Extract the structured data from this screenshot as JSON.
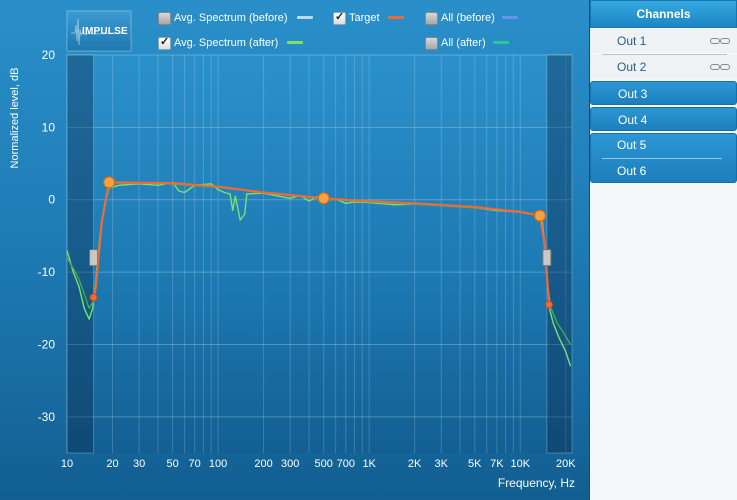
{
  "legend": {
    "items": [
      {
        "label": "Avg. Spectrum (before)",
        "checked": false,
        "color": "#b9dcec"
      },
      {
        "label": "Target",
        "checked": true,
        "color": "#f06a35"
      },
      {
        "label": "All (before)",
        "checked": false,
        "color": "#6f8ff0"
      },
      {
        "label": "Avg. Spectrum (after)",
        "checked": true,
        "color": "#7de06a"
      },
      {
        "label": "All (after)",
        "checked": false,
        "color": "#2fc59a"
      }
    ]
  },
  "impulse_button": {
    "label": "IMPULSE"
  },
  "chart_data": {
    "type": "line",
    "xscale": "log",
    "xlim": [
      10,
      22000
    ],
    "ylim": [
      -35,
      20
    ],
    "xlabel": "Frequency, Hz",
    "ylabel": "Normalized level, dB",
    "x_ticks": [
      {
        "value": 10,
        "label": "10"
      },
      {
        "value": 20,
        "label": "20"
      },
      {
        "value": 30,
        "label": "30"
      },
      {
        "value": 50,
        "label": "50"
      },
      {
        "value": 70,
        "label": "70"
      },
      {
        "value": 100,
        "label": "100"
      },
      {
        "value": 200,
        "label": "200"
      },
      {
        "value": 300,
        "label": "300"
      },
      {
        "value": 500,
        "label": "500"
      },
      {
        "value": 700,
        "label": "700"
      },
      {
        "value": 1000,
        "label": "1K"
      },
      {
        "value": 2000,
        "label": "2K"
      },
      {
        "value": 3000,
        "label": "3K"
      },
      {
        "value": 5000,
        "label": "5K"
      },
      {
        "value": 7000,
        "label": "7K"
      },
      {
        "value": 10000,
        "label": "10K"
      },
      {
        "value": 20000,
        "label": "20K"
      }
    ],
    "y_ticks": [
      20,
      10,
      0,
      -10,
      -20,
      -30
    ],
    "shaded_regions": [
      [
        10,
        15
      ],
      [
        15000,
        22000
      ]
    ],
    "series": [
      {
        "name": "Target",
        "color": "#f06a35",
        "points": [
          [
            15,
            -14
          ],
          [
            15.5,
            -12
          ],
          [
            17,
            -3
          ],
          [
            19,
            2.4
          ],
          [
            50,
            2.3
          ],
          [
            100,
            1.8
          ],
          [
            200,
            1.0
          ],
          [
            500,
            0.2
          ],
          [
            1000,
            -0.2
          ],
          [
            2000,
            -0.5
          ],
          [
            5000,
            -1.0
          ],
          [
            10000,
            -1.7
          ],
          [
            13500,
            -2.2
          ],
          [
            14500,
            -6
          ],
          [
            15200,
            -12
          ],
          [
            15600,
            -14.5
          ]
        ]
      },
      {
        "name": "Avg. Spectrum (after)",
        "color": "#7de06a",
        "points": [
          [
            10,
            -7
          ],
          [
            11,
            -10
          ],
          [
            12,
            -12
          ],
          [
            13,
            -15
          ],
          [
            14,
            -16.5
          ],
          [
            14.8,
            -15
          ],
          [
            15.5,
            -11
          ],
          [
            16.5,
            -5
          ],
          [
            18,
            0
          ],
          [
            19,
            1.6
          ],
          [
            22,
            2.0
          ],
          [
            30,
            2.2
          ],
          [
            40,
            2.0
          ],
          [
            50,
            2.4
          ],
          [
            55,
            1.2
          ],
          [
            60,
            1.0
          ],
          [
            70,
            2.0
          ],
          [
            90,
            2.2
          ],
          [
            100,
            1.4
          ],
          [
            110,
            1.0
          ],
          [
            120,
            0.8
          ],
          [
            125,
            -1.5
          ],
          [
            130,
            0.5
          ],
          [
            140,
            -2.8
          ],
          [
            150,
            -2.0
          ],
          [
            155,
            0.8
          ],
          [
            200,
            0.9
          ],
          [
            250,
            0.5
          ],
          [
            300,
            0.2
          ],
          [
            350,
            0.6
          ],
          [
            400,
            -0.2
          ],
          [
            450,
            0.4
          ],
          [
            500,
            -0.1
          ],
          [
            600,
            0.1
          ],
          [
            700,
            -0.5
          ],
          [
            800,
            -0.3
          ],
          [
            1000,
            -0.4
          ],
          [
            1500,
            -0.7
          ],
          [
            2000,
            -0.6
          ],
          [
            3000,
            -0.8
          ],
          [
            5000,
            -1.1
          ],
          [
            7000,
            -1.5
          ],
          [
            10000,
            -1.7
          ],
          [
            13000,
            -2.1
          ],
          [
            14000,
            -3
          ],
          [
            14500,
            -6
          ],
          [
            15000,
            -10
          ],
          [
            15300,
            -13
          ],
          [
            15600,
            -15
          ],
          [
            16500,
            -17
          ],
          [
            18000,
            -19
          ],
          [
            20000,
            -21
          ],
          [
            21500,
            -23
          ]
        ]
      },
      {
        "name": "",
        "color": "#3fae52",
        "points": [
          [
            10,
            -8
          ],
          [
            11,
            -9.5
          ],
          [
            12,
            -11
          ],
          [
            13,
            -13
          ],
          [
            14,
            -15
          ],
          [
            15,
            -14
          ],
          [
            16,
            -9
          ],
          [
            17,
            -3
          ],
          [
            18.5,
            1.5
          ],
          [
            20,
            2.3
          ],
          [
            40,
            2.3
          ],
          [
            100,
            1.7
          ],
          [
            200,
            1.0
          ],
          [
            500,
            0.1
          ],
          [
            1000,
            -0.3
          ],
          [
            3000,
            -0.8
          ],
          [
            10000,
            -1.6
          ],
          [
            13500,
            -2.2
          ],
          [
            14200,
            -5
          ],
          [
            14800,
            -9
          ],
          [
            15200,
            -12
          ],
          [
            16000,
            -15
          ],
          [
            17500,
            -17
          ],
          [
            19500,
            -18.5
          ],
          [
            21500,
            -20
          ]
        ]
      }
    ],
    "control_points": [
      [
        19,
        2.4
      ],
      [
        500,
        0.2
      ],
      [
        13500,
        -2.2
      ]
    ],
    "edge_markers": [
      [
        15,
        -13.5
      ],
      [
        15500,
        -14.5
      ]
    ],
    "range_handles": [
      15,
      15000
    ]
  },
  "sidebar": {
    "header": "Channels",
    "channels": [
      {
        "label": "Out 1",
        "style": "light",
        "linked": true
      },
      {
        "label": "Out 2",
        "style": "light",
        "linked": true
      },
      {
        "label": "Out 3",
        "style": "blue",
        "linked": false
      },
      {
        "label": "Out 4",
        "style": "blue",
        "linked": false
      },
      {
        "label": "Out 5",
        "style": "blue",
        "linked": false
      },
      {
        "label": "Out 6",
        "style": "blue",
        "linked": false
      }
    ]
  }
}
